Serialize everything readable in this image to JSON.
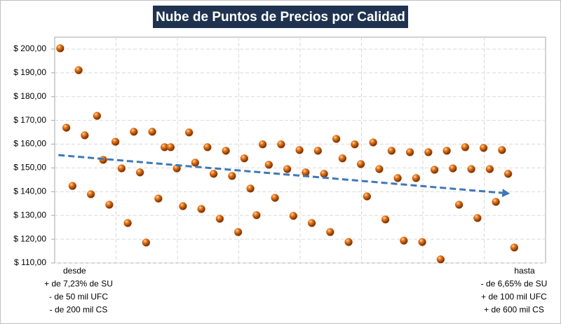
{
  "chart_data": {
    "type": "scatter",
    "title": "Nube de Puntos de Precios por Calidad",
    "x": [
      1,
      2,
      3,
      4,
      5,
      6,
      7,
      8,
      9,
      10,
      11,
      12,
      13,
      14,
      15,
      16,
      17,
      18,
      19,
      20,
      21,
      22,
      23,
      24,
      25,
      26,
      27,
      28,
      29,
      30,
      31,
      32,
      33,
      34,
      35,
      36,
      37,
      38,
      39,
      40,
      41,
      42,
      43,
      44,
      45,
      46,
      47,
      48,
      49,
      50,
      51,
      52,
      53,
      54,
      55,
      56,
      57,
      58,
      59,
      60,
      61,
      62,
      63,
      64,
      65,
      66,
      67,
      68,
      69,
      70,
      71,
      72,
      73,
      74,
      75
    ],
    "series": [
      {
        "color": "#d9650f",
        "values": [
          200.3,
          166.9,
          142.4,
          191.1,
          163.7,
          138.9,
          171.9,
          153.4,
          134.5,
          161.0,
          149.8,
          126.8,
          165.2,
          148.1,
          118.6,
          165.2,
          137.1,
          158.7,
          158.7,
          149.8,
          133.9,
          164.9,
          152.2,
          132.7,
          158.7,
          147.5,
          128.6,
          157.2,
          146.6,
          123.0,
          154.0,
          141.3,
          130.1,
          159.9,
          151.3,
          137.4,
          159.9,
          149.5,
          129.8,
          157.5,
          148.1,
          126.8,
          157.2,
          147.5,
          123.0,
          162.2,
          154.0,
          118.8,
          159.9,
          151.6,
          138.0,
          160.7,
          149.5,
          128.3,
          157.2,
          145.7,
          119.4,
          156.6,
          145.7,
          118.8,
          156.6,
          149.2,
          111.5,
          157.2,
          149.8,
          134.5,
          158.7,
          149.5,
          128.9,
          158.4,
          149.5,
          135.7,
          157.5,
          147.5,
          116.5
        ]
      }
    ],
    "trendline": {
      "color": "#3f78b8",
      "x": [
        0.7,
        74.3
      ],
      "y": [
        155.4,
        139.2
      ]
    },
    "xlim": [
      0.1,
      80.1
    ],
    "xticks": [
      10.1,
      20.1,
      30.1,
      40.1,
      50.1,
      60.1,
      70.1
    ],
    "ylim": [
      110,
      205
    ],
    "yticks": [
      {
        "value": 110,
        "label": "$ 110,00"
      },
      {
        "value": 120,
        "label": "$ 120,00"
      },
      {
        "value": 130,
        "label": "$ 130,00"
      },
      {
        "value": 140,
        "label": "$ 140,00"
      },
      {
        "value": 150,
        "label": "$ 150,00"
      },
      {
        "value": 160,
        "label": "$ 160,00"
      },
      {
        "value": 170,
        "label": "$ 170,00"
      },
      {
        "value": 180,
        "label": "$ 180,00"
      },
      {
        "value": 190,
        "label": "$ 190,00"
      },
      {
        "value": 200,
        "label": "$ 200,00"
      }
    ],
    "grid": true,
    "annotations": [
      {
        "lines": [
          "desde",
          "+ de 7,23% de SU",
          "- de 50 mil UFC",
          "- de 200 mil CS"
        ]
      },
      {
        "lines": [
          "hasta",
          "- de 6,65% de SU",
          "+ de 100 mil UFC",
          "+ de 600 mil CS"
        ]
      }
    ]
  }
}
